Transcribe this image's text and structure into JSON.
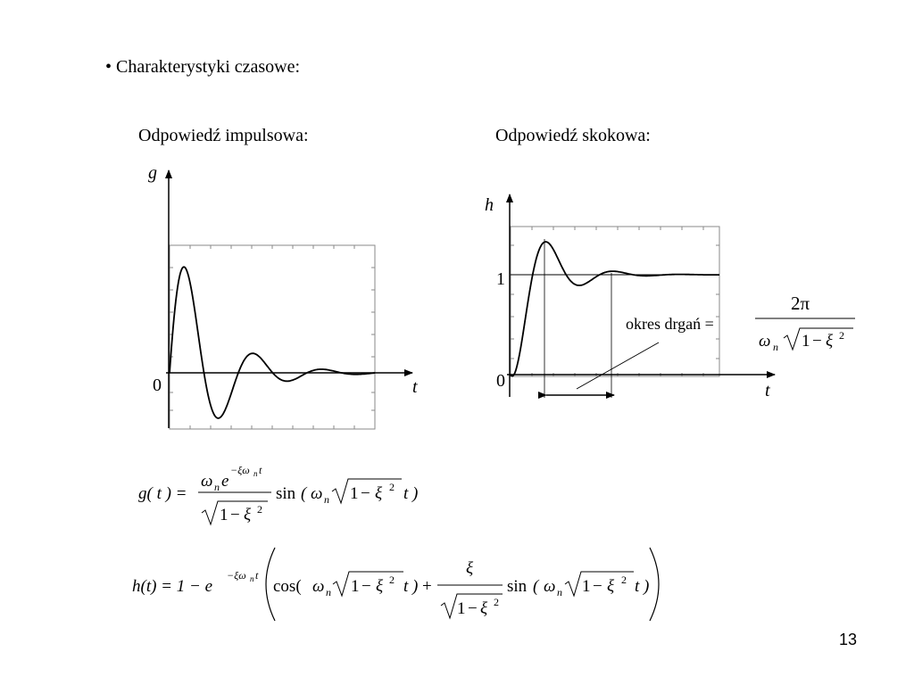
{
  "slide": {
    "bullet_text": "• Charakterystyki czasowe:",
    "page_number": "13"
  },
  "impulse": {
    "heading": "Odpowiedź impulsowa:",
    "y_axis_label": "g",
    "x_axis_label": "t",
    "origin_label": "0"
  },
  "step": {
    "heading": "Odpowiedź skokowa:",
    "y_axis_label": "h",
    "x_axis_label": "t",
    "origin_label": "0",
    "one_label": "1",
    "period_label": "okres drgań ="
  },
  "formulas": {
    "g": {
      "lhs": "g( t ) =",
      "num_omega": "ω",
      "num_n": "n",
      "num_e": "e",
      "num_exp": "−ξω",
      "num_exp_n": "n",
      "num_exp_t": "t",
      "den_1": "1",
      "den_minus": "−",
      "den_xi": "ξ",
      "den_sq": "2",
      "sin": "sin",
      "arg_open": "(",
      "arg_omega": "ω",
      "arg_n": "n",
      "arg_1": "1",
      "arg_minus": "−",
      "arg_xi": "ξ",
      "arg_sq": "2",
      "arg_t": "t",
      "arg_close": ")"
    },
    "h": {
      "lhs": "h(t) = 1 − e",
      "exp": "−ξω",
      "exp_n": "n",
      "exp_t": "t",
      "cos": "cos(",
      "cos_omega": "ω",
      "cos_n": "n",
      "cos_1": "1",
      "cos_minus": "−",
      "cos_xi": "ξ",
      "cos_sq": "2",
      "cos_t": "t )",
      "plus": "+",
      "frac_num": "ξ",
      "frac_den_1": "1",
      "frac_den_minus": "−",
      "frac_den_xi": "ξ",
      "frac_den_sq": "2",
      "sin": "sin",
      "sin_open": "(",
      "sin_omega": "ω",
      "sin_n": "n",
      "sin_1": "1",
      "sin_minus": "−",
      "sin_xi": "ξ",
      "sin_sq": "2",
      "sin_t": "t",
      "sin_close": ")"
    },
    "period": {
      "num": "2π",
      "den_omega": "ω",
      "den_n": "n",
      "den_1": "1",
      "den_minus": "−",
      "den_xi": "ξ",
      "den_sq": "2"
    }
  }
}
